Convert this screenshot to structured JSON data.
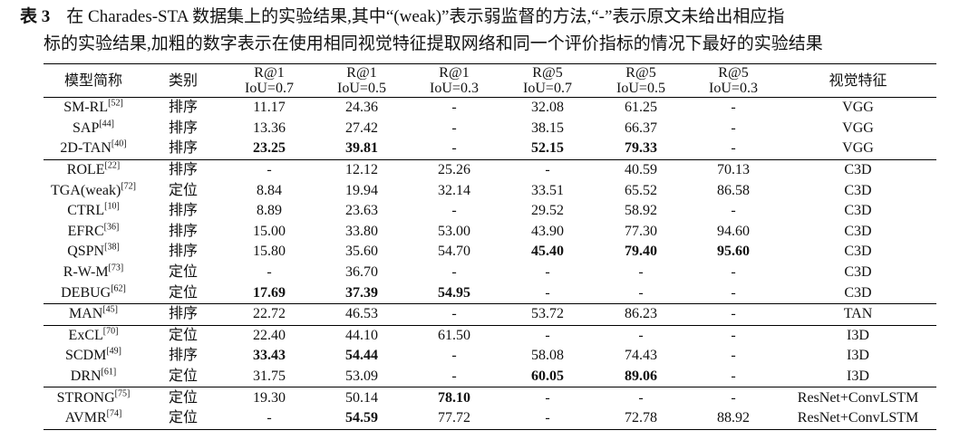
{
  "caption": {
    "label": "表 3",
    "lines": [
      "在 Charades-STA 数据集上的实验结果,其中“(weak)”表示弱监督的方法,“-”表示原文未给出相应指",
      "标的实验结果,加粗的数字表示在使用相同视觉特征提取网络和同一个评价指标的情况下最好的实验结果"
    ]
  },
  "table": {
    "header": [
      "模型简称",
      "类别",
      [
        "R@1",
        "IoU=0.7"
      ],
      [
        "R@1",
        "IoU=0.5"
      ],
      [
        "R@1",
        "IoU=0.3"
      ],
      [
        "R@5",
        "IoU=0.7"
      ],
      [
        "R@5",
        "IoU=0.5"
      ],
      [
        "R@5",
        "IoU=0.3"
      ],
      "视觉特征"
    ],
    "groups": [
      [
        {
          "name": "SM-RL",
          "ref": "[52]",
          "cells": [
            "排序",
            "11.17",
            "24.36",
            "-",
            "32.08",
            "61.25",
            "-",
            "VGG"
          ]
        },
        {
          "name": "SAP",
          "ref": "[44]",
          "cells": [
            "排序",
            "13.36",
            "27.42",
            "-",
            "38.15",
            "66.37",
            "-",
            "VGG"
          ]
        },
        {
          "name": "2D-TAN",
          "ref": "[40]",
          "cells": [
            "排序",
            {
              "text": "23.25",
              "bold": true
            },
            {
              "text": "39.81",
              "bold": true
            },
            "-",
            {
              "text": "52.15",
              "bold": true
            },
            {
              "text": "79.33",
              "bold": true
            },
            "-",
            "VGG"
          ]
        }
      ],
      [
        {
          "name": "ROLE",
          "ref": "[22]",
          "cells": [
            "排序",
            "-",
            "12.12",
            "25.26",
            "-",
            "40.59",
            "70.13",
            "C3D"
          ]
        },
        {
          "name": "TGA(weak)",
          "ref": "[72]",
          "cells": [
            "定位",
            "8.84",
            "19.94",
            "32.14",
            "33.51",
            "65.52",
            "86.58",
            "C3D"
          ]
        },
        {
          "name": "CTRL",
          "ref": "[10]",
          "cells": [
            "排序",
            "8.89",
            "23.63",
            "-",
            "29.52",
            "58.92",
            "-",
            "C3D"
          ]
        },
        {
          "name": "EFRC",
          "ref": "[36]",
          "cells": [
            "排序",
            "15.00",
            "33.80",
            "53.00",
            "43.90",
            "77.30",
            "94.60",
            "C3D"
          ]
        },
        {
          "name": "QSPN",
          "ref": "[38]",
          "cells": [
            "排序",
            "15.80",
            "35.60",
            "54.70",
            {
              "text": "45.40",
              "bold": true
            },
            {
              "text": "79.40",
              "bold": true
            },
            {
              "text": "95.60",
              "bold": true
            },
            "C3D"
          ]
        },
        {
          "name": "R-W-M",
          "ref": "[73]",
          "cells": [
            "定位",
            "-",
            "36.70",
            "-",
            "-",
            "-",
            "-",
            "C3D"
          ]
        },
        {
          "name": "DEBUG",
          "ref": "[62]",
          "cells": [
            "定位",
            {
              "text": "17.69",
              "bold": true
            },
            {
              "text": "37.39",
              "bold": true
            },
            {
              "text": "54.95",
              "bold": true
            },
            "-",
            "-",
            "-",
            "C3D"
          ]
        }
      ],
      [
        {
          "name": "MAN",
          "ref": "[45]",
          "cells": [
            "排序",
            "22.72",
            "46.53",
            "-",
            "53.72",
            "86.23",
            "-",
            "TAN"
          ]
        }
      ],
      [
        {
          "name": "ExCL",
          "ref": "[70]",
          "cells": [
            "定位",
            "22.40",
            "44.10",
            "61.50",
            "-",
            "-",
            "-",
            "I3D"
          ]
        },
        {
          "name": "SCDM",
          "ref": "[49]",
          "cells": [
            "排序",
            {
              "text": "33.43",
              "bold": true
            },
            {
              "text": "54.44",
              "bold": true
            },
            "-",
            "58.08",
            "74.43",
            "-",
            "I3D"
          ]
        },
        {
          "name": "DRN",
          "ref": "[61]",
          "cells": [
            "定位",
            "31.75",
            "53.09",
            "-",
            {
              "text": "60.05",
              "bold": true
            },
            {
              "text": "89.06",
              "bold": true
            },
            "-",
            "I3D"
          ]
        }
      ],
      [
        {
          "name": "STRONG",
          "ref": "[75]",
          "cells": [
            "定位",
            "19.30",
            "50.14",
            {
              "text": "78.10",
              "bold": true
            },
            "-",
            "-",
            "-",
            "ResNet+ConvLSTM"
          ]
        },
        {
          "name": "AVMR",
          "ref": "[74]",
          "cells": [
            "定位",
            "-",
            {
              "text": "54.59",
              "bold": true
            },
            "77.72",
            "-",
            "72.78",
            "88.92",
            "ResNet+ConvLSTM"
          ]
        }
      ]
    ]
  }
}
